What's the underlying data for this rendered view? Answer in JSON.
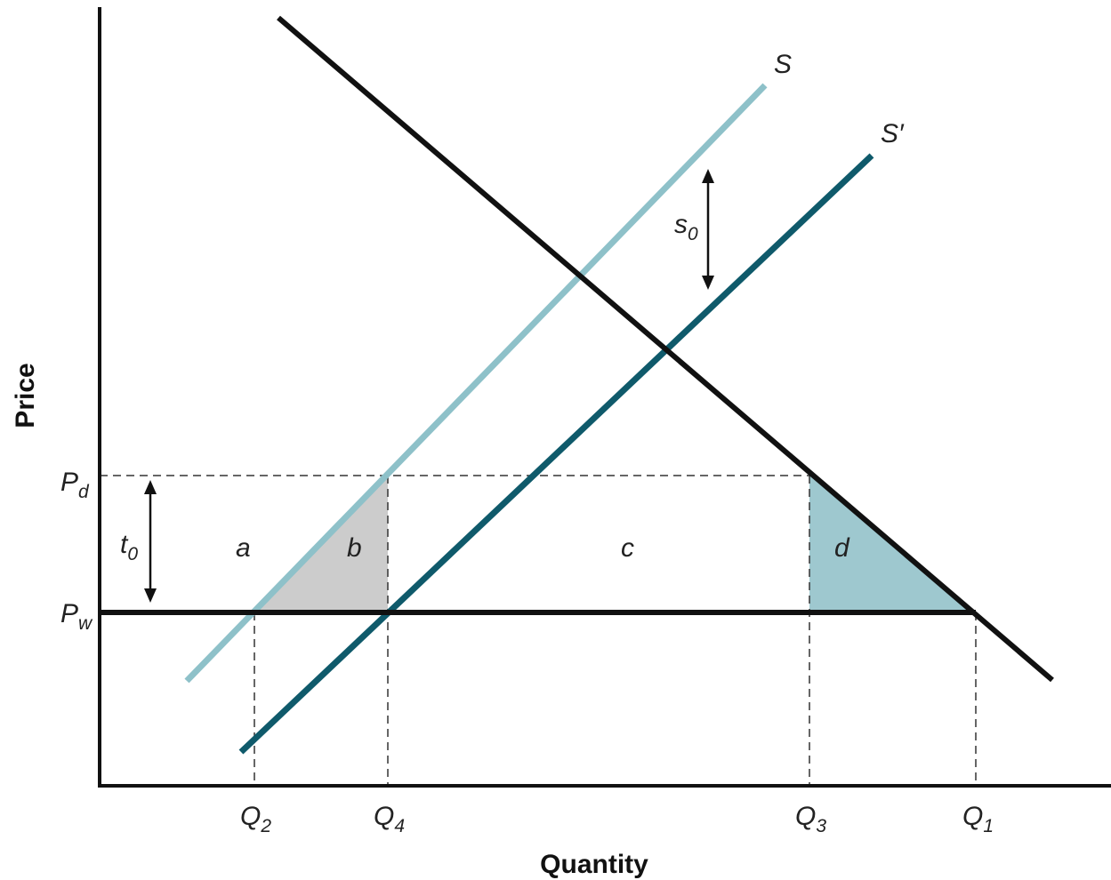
{
  "axes": {
    "x_title": "Quantity",
    "y_title": "Price"
  },
  "price_labels": {
    "pd": {
      "main": "P",
      "sub": "d"
    },
    "pw": {
      "main": "P",
      "sub": "w"
    }
  },
  "quantity_labels": {
    "q2": {
      "main": "Q",
      "sub": "2"
    },
    "q4": {
      "main": "Q",
      "sub": "4"
    },
    "q3": {
      "main": "Q",
      "sub": "3"
    },
    "q1": {
      "main": "Q",
      "sub": "1"
    }
  },
  "curve_labels": {
    "supply": "S",
    "supply_shifted": "S′"
  },
  "arrow_labels": {
    "tariff": {
      "main": "t",
      "sub": "0"
    },
    "subsidy": {
      "main": "s",
      "sub": "0"
    }
  },
  "area_labels": {
    "a": "a",
    "b": "b",
    "c": "c",
    "d": "d"
  },
  "colors": {
    "axis": "#111111",
    "demand": "#111111",
    "world_price": "#111111",
    "supply": "#8ec1c9",
    "supply_shifted": "#0f5a6b",
    "area_b": "#cccccc",
    "area_d": "#9ec8cf",
    "dashed": "#333333"
  }
}
